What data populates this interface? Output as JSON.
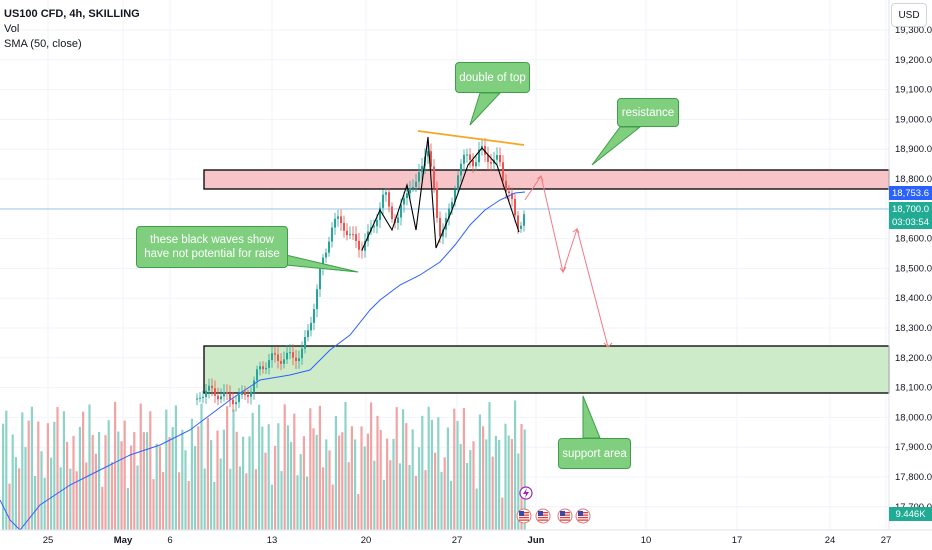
{
  "legend": {
    "symbol": "US100 CFD, 4h, SKILLING",
    "volume_label": "Vol",
    "sma_label": "SMA (50, close)"
  },
  "currency_button": "USD",
  "price_axis": {
    "ticks": [
      "19,300.0",
      "19,200.0",
      "19,100.0",
      "19,000.0",
      "18,900.0",
      "18,800.0",
      "18,700.0",
      "18,600.0",
      "18,500.0",
      "18,400.0",
      "18,300.0",
      "18,200.0",
      "18,100.0",
      "18,000.0",
      "17,900.0",
      "17,800.0",
      "17,700.0"
    ],
    "last_price_label": "18,753.6",
    "current_price_label": "18,700.0",
    "countdown_label": "03:03:54",
    "volume_label": "9.446K"
  },
  "time_axis": {
    "ticks": [
      "25",
      "May",
      "6",
      "13",
      "20",
      "27",
      "Jun",
      "10",
      "17",
      "24",
      "27"
    ]
  },
  "annotations": {
    "double_top": "double of top",
    "resistance": "resistance",
    "black_waves": "these black waves show\n have not potential for raise",
    "support": "support area"
  },
  "colors": {
    "up_candle": "#26a69a",
    "down_candle": "#ef5350",
    "sma_line": "#2962ff",
    "resistance_fill": "#f7c5c8",
    "support_fill": "#cdebc9",
    "callout_fill": "#7fcf7f",
    "projection_line": "#f07b85",
    "trend_line": "#f5a623",
    "price_tag_blue": "#2962ff",
    "price_tag_green": "#22ab94"
  },
  "icons": [
    "lightning-icon",
    "us-flag-event-icon"
  ]
}
